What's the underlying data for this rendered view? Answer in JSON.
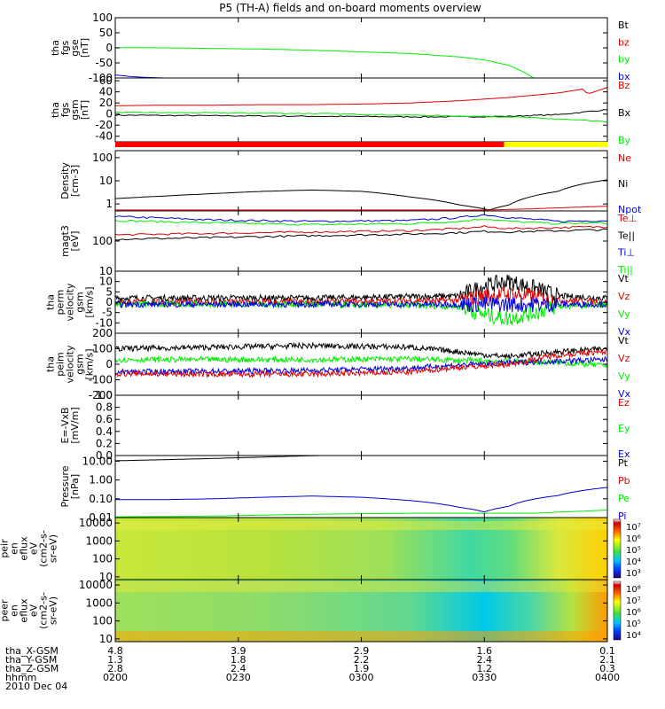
{
  "title": "P5 (TH-A) fields and on-board moments overview",
  "colors": {
    "black": "#000000",
    "red": "#dd0000",
    "green": "#00ee00",
    "blue": "#0000dd"
  },
  "chart_data": [
    {
      "type": "line",
      "panel": "fgs-gse",
      "ylabel": [
        "tha",
        "fgs",
        "gse",
        "[nT]"
      ],
      "yticks": [
        "100",
        "50",
        "0",
        "-50",
        "-100"
      ],
      "ylim": [
        -100,
        100
      ],
      "legend": [
        {
          "name": "Bt",
          "color": "black"
        },
        {
          "name": "bz",
          "color": "red"
        },
        {
          "name": "by",
          "color": "green"
        },
        {
          "name": "bx",
          "color": "blue"
        }
      ],
      "series": [
        {
          "name": "by",
          "color": "green",
          "x": [
            0,
            0.1,
            0.2,
            0.3,
            0.4,
            0.5,
            0.6,
            0.7,
            0.75,
            0.8,
            0.83,
            0.85
          ],
          "y": [
            1,
            0,
            -2,
            -4,
            -8,
            -13,
            -19,
            -30,
            -40,
            -58,
            -80,
            -100
          ]
        },
        {
          "name": "bx",
          "color": "blue",
          "x": [
            0,
            0.03,
            0.06,
            0.1
          ],
          "y": [
            -90,
            -95,
            -98,
            -100
          ]
        }
      ]
    },
    {
      "type": "line",
      "panel": "fgs-gsm",
      "ylabel": [
        "tha",
        "fgs",
        "gsm",
        "[nT]"
      ],
      "yticks": [
        "60",
        "40",
        "20",
        "0",
        "-20",
        "-40"
      ],
      "ylim": [
        -50,
        65
      ],
      "legend": [
        {
          "name": "Bz",
          "color": "red"
        },
        {
          "name": "Bx",
          "color": "black"
        },
        {
          "name": "By",
          "color": "green"
        }
      ],
      "series": [
        {
          "name": "Bz",
          "color": "red",
          "x": [
            0,
            0.1,
            0.2,
            0.3,
            0.4,
            0.5,
            0.55,
            0.6,
            0.7,
            0.8,
            0.9,
            0.95,
            0.96,
            1.0
          ],
          "y": [
            15,
            16,
            16,
            17,
            17,
            18,
            19,
            20,
            24,
            30,
            38,
            45,
            36,
            48
          ]
        },
        {
          "name": "Bx",
          "color": "black",
          "x": [
            0,
            0.2,
            0.4,
            0.6,
            0.7,
            0.8,
            0.9,
            1.0
          ],
          "y": [
            -2,
            -3,
            -4,
            -5,
            -5,
            -4,
            -1,
            8
          ]
        },
        {
          "name": "By",
          "color": "green",
          "x": [
            0,
            0.2,
            0.4,
            0.6,
            0.8,
            0.9,
            1.0
          ],
          "y": [
            3,
            2,
            1,
            -2,
            -5,
            -9,
            -14
          ]
        }
      ]
    },
    {
      "type": "bar",
      "panel": "mode-bar",
      "segments": [
        {
          "from": 0,
          "to": 0.79,
          "color": "#ff0000"
        },
        {
          "from": 0.79,
          "to": 1.0,
          "color": "#ffff00"
        }
      ]
    },
    {
      "type": "line",
      "panel": "density",
      "log": true,
      "ylabel": [
        "Density",
        "[cm-3]"
      ],
      "yticks": [
        "100",
        "10",
        "1"
      ],
      "ylim": [
        0.5,
        200
      ],
      "legend": [
        {
          "name": "Ne",
          "color": "red"
        },
        {
          "name": "Ni",
          "color": "black"
        },
        {
          "name": "Npot",
          "color": "blue"
        }
      ],
      "series": [
        {
          "name": "Ni",
          "color": "black",
          "x": [
            0,
            0.1,
            0.2,
            0.3,
            0.4,
            0.5,
            0.6,
            0.7,
            0.76,
            0.8,
            0.9,
            1.0
          ],
          "y": [
            1.7,
            2.2,
            2.8,
            3.5,
            4.0,
            3.5,
            2.0,
            0.9,
            0.55,
            0.9,
            3.5,
            11
          ]
        },
        {
          "name": "Ne",
          "color": "red",
          "x": [
            0,
            0.5,
            0.76,
            0.85,
            1.0
          ],
          "y": [
            0.55,
            0.55,
            0.55,
            0.62,
            0.8
          ]
        }
      ]
    },
    {
      "type": "line",
      "panel": "temperature",
      "log": true,
      "ylabel": [
        "magt3",
        "[eV]"
      ],
      "yticks": [
        "100",
        "10"
      ],
      "ylim": [
        10,
        1000
      ],
      "legend": [
        {
          "name": "Te⊥",
          "color": "red"
        },
        {
          "name": "Te||",
          "color": "black"
        },
        {
          "name": "Ti⊥",
          "color": "blue"
        },
        {
          "name": "Ti||",
          "color": "green"
        }
      ],
      "series": [
        {
          "name": "Ti⊥",
          "color": "blue",
          "x": [
            0,
            0.2,
            0.4,
            0.6,
            0.7,
            0.75,
            0.8,
            0.9,
            1.0
          ],
          "y": [
            650,
            500,
            450,
            480,
            600,
            750,
            600,
            450,
            480
          ]
        },
        {
          "name": "Ti||",
          "color": "green",
          "x": [
            0,
            0.2,
            0.4,
            0.6,
            0.7,
            0.75,
            0.8,
            0.9,
            1.0
          ],
          "y": [
            480,
            400,
            350,
            380,
            450,
            550,
            450,
            380,
            400
          ]
        },
        {
          "name": "Te⊥",
          "color": "red",
          "x": [
            0,
            0.2,
            0.4,
            0.6,
            0.7,
            0.75,
            0.8,
            0.9,
            1.0
          ],
          "y": [
            160,
            180,
            200,
            220,
            260,
            300,
            260,
            280,
            300
          ]
        },
        {
          "name": "Te||",
          "color": "black",
          "x": [
            0,
            0.2,
            0.4,
            0.6,
            0.7,
            0.75,
            0.8,
            0.9,
            1.0
          ],
          "y": [
            115,
            130,
            150,
            170,
            190,
            210,
            200,
            220,
            240
          ]
        }
      ]
    },
    {
      "type": "line",
      "panel": "velocity-perm",
      "ylabel": [
        "tha",
        "perm",
        "velocity",
        "gsm",
        "[km/s]"
      ],
      "yticks": [
        "10",
        "5",
        "0",
        "-5",
        "-10"
      ],
      "ylim": [
        -15,
        15
      ],
      "legend": [
        {
          "name": "Vt",
          "color": "black"
        },
        {
          "name": "Vz",
          "color": "red"
        },
        {
          "name": "Vy",
          "color": "green"
        },
        {
          "name": "Vx",
          "color": "blue"
        }
      ],
      "series": [
        {
          "name": "Vt",
          "color": "black",
          "x": [
            0,
            0.4,
            0.7,
            0.75,
            0.8,
            0.85,
            0.9,
            1.0
          ],
          "y": [
            2,
            2,
            3,
            8,
            10,
            7,
            3,
            2
          ]
        },
        {
          "name": "Vz",
          "color": "red",
          "x": [
            0,
            0.4,
            0.7,
            0.75,
            0.8,
            0.9,
            1.0
          ],
          "y": [
            0,
            0,
            1,
            3,
            4,
            1,
            0
          ]
        },
        {
          "name": "Vy",
          "color": "green",
          "x": [
            0,
            0.4,
            0.7,
            0.75,
            0.8,
            0.85,
            0.9,
            1.0
          ],
          "y": [
            -1,
            -1,
            -2,
            -6,
            -8,
            -5,
            -2,
            -1
          ]
        },
        {
          "name": "Vx",
          "color": "blue",
          "x": [
            0,
            0.4,
            0.7,
            0.8,
            1.0
          ],
          "y": [
            -1,
            -1,
            -1,
            -1,
            -1
          ]
        }
      ]
    },
    {
      "type": "line",
      "panel": "velocity-peim",
      "ylabel": [
        "tha",
        "peim",
        "velocity",
        "gsm",
        "[km/s]"
      ],
      "yticks": [
        "200",
        "100",
        "0",
        "-100",
        "-200"
      ],
      "ylim": [
        -200,
        200
      ],
      "legend": [
        {
          "name": "Vt",
          "color": "black"
        },
        {
          "name": "Vz",
          "color": "red"
        },
        {
          "name": "Vy",
          "color": "green"
        },
        {
          "name": "Vx",
          "color": "blue"
        }
      ],
      "series": [
        {
          "name": "Vt",
          "color": "black",
          "x": [
            0,
            0.2,
            0.4,
            0.6,
            0.7,
            0.75,
            0.8,
            0.9,
            1.0
          ],
          "y": [
            100,
            110,
            120,
            110,
            80,
            60,
            50,
            80,
            100
          ]
        },
        {
          "name": "Vy",
          "color": "green",
          "x": [
            0,
            0.2,
            0.4,
            0.6,
            0.7,
            0.8,
            0.9,
            1.0
          ],
          "y": [
            30,
            30,
            30,
            35,
            25,
            20,
            10,
            -10
          ]
        },
        {
          "name": "Vx",
          "color": "blue",
          "x": [
            0,
            0.2,
            0.4,
            0.6,
            0.7,
            0.8,
            0.9,
            1.0
          ],
          "y": [
            -50,
            -45,
            -40,
            -25,
            -5,
            10,
            20,
            30
          ]
        },
        {
          "name": "Vz",
          "color": "red",
          "x": [
            0,
            0.2,
            0.4,
            0.6,
            0.7,
            0.8,
            0.9,
            1.0
          ],
          "y": [
            -60,
            -65,
            -65,
            -50,
            -20,
            0,
            60,
            80
          ]
        }
      ]
    },
    {
      "type": "line",
      "panel": "efield",
      "ylabel": [
        "E=-VxB",
        "[mV/m]"
      ],
      "yticks": [
        "1.0",
        "0.8",
        "0.6",
        "0.4",
        "0.2",
        "0.0"
      ],
      "ylim": [
        0,
        1
      ],
      "legend": [
        {
          "name": "Ez",
          "color": "red"
        },
        {
          "name": "Ey",
          "color": "green"
        },
        {
          "name": "Ex",
          "color": "blue"
        }
      ],
      "series": []
    },
    {
      "type": "line",
      "panel": "pressure",
      "log": true,
      "ylabel": [
        "Pressure",
        "[nPa]"
      ],
      "yticks": [
        "10.00",
        "1.00",
        "0.10",
        "0.01"
      ],
      "ylim": [
        0.01,
        20
      ],
      "legend": [
        {
          "name": "Pt",
          "color": "black"
        },
        {
          "name": "Pb",
          "color": "red"
        },
        {
          "name": "Pe",
          "color": "green"
        },
        {
          "name": "Pi",
          "color": "blue"
        }
      ],
      "series": [
        {
          "name": "Pt",
          "color": "black",
          "x": [
            0,
            0.1,
            0.2,
            0.3,
            0.38,
            0.42
          ],
          "y": [
            10.5,
            12,
            14,
            16.5,
            19,
            20
          ]
        },
        {
          "name": "Pi",
          "color": "blue",
          "x": [
            0,
            0.1,
            0.2,
            0.3,
            0.4,
            0.5,
            0.6,
            0.7,
            0.75,
            0.8,
            0.9,
            1.0
          ],
          "y": [
            0.09,
            0.09,
            0.1,
            0.12,
            0.14,
            0.12,
            0.08,
            0.035,
            0.02,
            0.04,
            0.15,
            0.4
          ]
        },
        {
          "name": "Pe",
          "color": "green",
          "x": [
            0,
            0.2,
            0.4,
            0.6,
            0.75,
            0.85,
            0.95,
            1.0
          ],
          "y": [
            0.011,
            0.012,
            0.015,
            0.017,
            0.017,
            0.017,
            0.022,
            0.025
          ]
        }
      ]
    },
    {
      "type": "heatmap",
      "panel": "peir-spectrogram",
      "ylabel": [
        "tha",
        "peir",
        "en",
        "eflux",
        "eV",
        "(cm2-s-",
        "sr-eV)"
      ],
      "yticks": [
        "10000",
        "1000",
        "100",
        "10"
      ],
      "colorbar_ticks": [
        "10⁷",
        "10⁶",
        "10⁵",
        "10⁴",
        "10³"
      ]
    },
    {
      "type": "heatmap",
      "panel": "peer-spectrogram",
      "ylabel": [
        "tha",
        "peer",
        "en",
        "eflux",
        "eV",
        "(cm2-s-",
        "sr-eV)"
      ],
      "yticks": [
        "10000",
        "1000",
        "100",
        "10"
      ],
      "colorbar_ticks": [
        "10⁸",
        "10⁷",
        "10⁶",
        "10⁵",
        "10⁴"
      ]
    }
  ],
  "x_axis": {
    "row_labels": [
      "tha_X-GSM",
      "tha_Y-GSM",
      "tha_Z-GSM",
      "hhmm",
      "2010 Dec 04"
    ],
    "ticks": [
      {
        "x": 0,
        "vals": [
          "4.8",
          "1.3",
          "2.8",
          "0200"
        ]
      },
      {
        "x": 0.25,
        "vals": [
          "3.9",
          "1.8",
          "2.4",
          "0230"
        ]
      },
      {
        "x": 0.5,
        "vals": [
          "2.9",
          "2.2",
          "1.9",
          "0300"
        ]
      },
      {
        "x": 0.75,
        "vals": [
          "1.6",
          "2.4",
          "1.2",
          "0330"
        ]
      },
      {
        "x": 1.0,
        "vals": [
          "0.1",
          "2.1",
          "0.3",
          "0400"
        ]
      }
    ]
  }
}
